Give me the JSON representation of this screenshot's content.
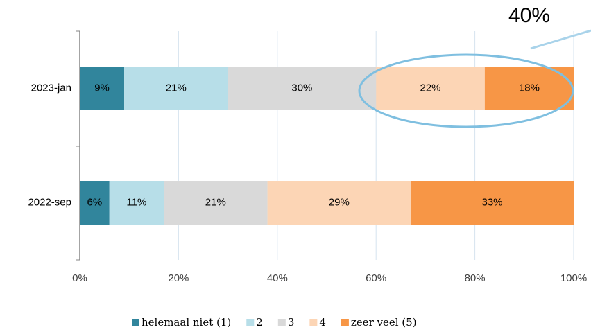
{
  "chart_data": {
    "type": "stacked_barh",
    "categories": [
      "2023-jan",
      "2022-sep"
    ],
    "series": [
      {
        "name": "helemaal niet (1)",
        "color": "#31859c",
        "values": [
          9,
          6
        ],
        "value_labels": [
          "9%",
          "6%"
        ]
      },
      {
        "name": "2",
        "color": "#b7dee8",
        "values": [
          21,
          11
        ],
        "value_labels": [
          "21%",
          "11%"
        ]
      },
      {
        "name": "3",
        "color": "#d9d9d9",
        "values": [
          30,
          21
        ],
        "value_labels": [
          "30%",
          "21%"
        ]
      },
      {
        "name": "4",
        "color": "#fcd5b5",
        "values": [
          22,
          29
        ],
        "value_labels": [
          "22%",
          "29%"
        ]
      },
      {
        "name": "zeer veel (5)",
        "color": "#f79646",
        "values": [
          18,
          33
        ],
        "value_labels": [
          "18%",
          "33%"
        ]
      }
    ],
    "xlim": [
      0,
      100
    ],
    "xticks": [
      {
        "value": 0,
        "label": "0%"
      },
      {
        "value": 20,
        "label": "20%"
      },
      {
        "value": 40,
        "label": "40%"
      },
      {
        "value": 60,
        "label": "60%"
      },
      {
        "value": 80,
        "label": "80%"
      },
      {
        "value": 100,
        "label": "100%"
      }
    ],
    "grid": true,
    "legend": "bottom",
    "annotation": "40%"
  }
}
